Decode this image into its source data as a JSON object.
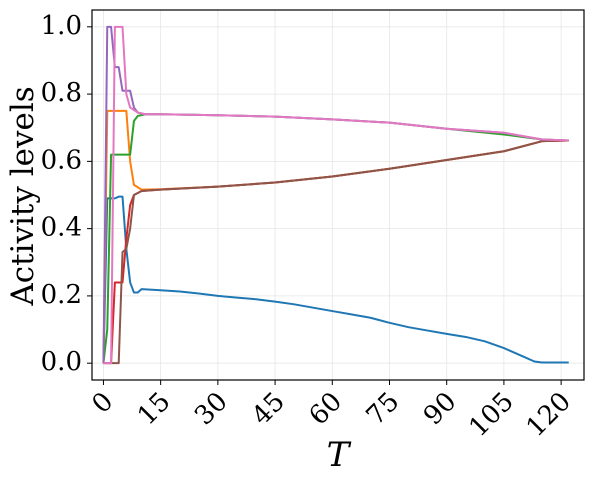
{
  "chart_data": {
    "type": "line",
    "xlabel": "T",
    "ylabel": "Activity levels",
    "xlim": [
      -3,
      126
    ],
    "ylim": [
      -0.05,
      1.05
    ],
    "xticks": [
      0,
      15,
      30,
      45,
      60,
      75,
      90,
      105,
      120
    ],
    "yticks": [
      0.0,
      0.2,
      0.4,
      0.6,
      0.8,
      1.0
    ],
    "xtick_labels": [
      "0",
      "15",
      "30",
      "45",
      "60",
      "75",
      "90",
      "105",
      "120"
    ],
    "ytick_labels": [
      "0.0",
      "0.2",
      "0.4",
      "0.6",
      "0.8",
      "1.0"
    ],
    "xtick_rotation": 45,
    "grid": true,
    "series": [
      {
        "color": "#1f77b4",
        "points": [
          [
            0,
            0
          ],
          [
            1,
            0.49
          ],
          [
            3,
            0.49
          ],
          [
            4,
            0.495
          ],
          [
            5,
            0.495
          ],
          [
            6,
            0.34
          ],
          [
            7,
            0.24
          ],
          [
            8,
            0.21
          ],
          [
            9,
            0.21
          ],
          [
            10,
            0.22
          ],
          [
            15,
            0.217
          ],
          [
            20,
            0.213
          ],
          [
            25,
            0.207
          ],
          [
            30,
            0.2
          ],
          [
            35,
            0.195
          ],
          [
            40,
            0.19
          ],
          [
            45,
            0.183
          ],
          [
            50,
            0.175
          ],
          [
            55,
            0.165
          ],
          [
            60,
            0.155
          ],
          [
            65,
            0.145
          ],
          [
            70,
            0.135
          ],
          [
            75,
            0.12
          ],
          [
            80,
            0.107
          ],
          [
            85,
            0.097
          ],
          [
            90,
            0.087
          ],
          [
            95,
            0.078
          ],
          [
            100,
            0.065
          ],
          [
            105,
            0.045
          ],
          [
            110,
            0.02
          ],
          [
            113,
            0.005
          ],
          [
            115,
            0.002
          ],
          [
            122,
            0.002
          ]
        ]
      },
      {
        "color": "#ff7f0e",
        "points": [
          [
            0,
            0
          ],
          [
            1,
            0.75
          ],
          [
            6,
            0.75
          ],
          [
            7,
            0.6
          ],
          [
            8,
            0.53
          ],
          [
            10,
            0.516
          ],
          [
            15,
            0.517
          ],
          [
            30,
            0.525
          ],
          [
            45,
            0.537
          ],
          [
            60,
            0.555
          ],
          [
            75,
            0.578
          ],
          [
            90,
            0.604
          ],
          [
            105,
            0.63
          ],
          [
            115,
            0.66
          ],
          [
            122,
            0.662
          ]
        ]
      },
      {
        "color": "#2ca02c",
        "points": [
          [
            0,
            0
          ],
          [
            1,
            0.1
          ],
          [
            2,
            0.62
          ],
          [
            7,
            0.62
          ],
          [
            8,
            0.72
          ],
          [
            9,
            0.735
          ],
          [
            11,
            0.74
          ],
          [
            15,
            0.74
          ],
          [
            30,
            0.737
          ],
          [
            45,
            0.733
          ],
          [
            60,
            0.725
          ],
          [
            75,
            0.715
          ],
          [
            90,
            0.697
          ],
          [
            105,
            0.68
          ],
          [
            115,
            0.665
          ],
          [
            122,
            0.662
          ]
        ]
      },
      {
        "color": "#d62728",
        "points": [
          [
            0,
            0
          ],
          [
            2,
            0
          ],
          [
            3,
            0.24
          ],
          [
            5,
            0.24
          ],
          [
            6,
            0.37
          ],
          [
            7,
            0.47
          ],
          [
            8,
            0.5
          ],
          [
            10,
            0.512
          ],
          [
            15,
            0.516
          ],
          [
            30,
            0.525
          ],
          [
            45,
            0.537
          ],
          [
            60,
            0.555
          ],
          [
            75,
            0.578
          ],
          [
            90,
            0.604
          ],
          [
            105,
            0.63
          ],
          [
            115,
            0.66
          ],
          [
            122,
            0.662
          ]
        ]
      },
      {
        "color": "#9467bd",
        "points": [
          [
            0,
            0
          ],
          [
            1,
            1.0
          ],
          [
            2,
            1.0
          ],
          [
            3,
            0.88
          ],
          [
            4,
            0.88
          ],
          [
            5,
            0.81
          ],
          [
            7,
            0.81
          ],
          [
            8,
            0.76
          ],
          [
            9,
            0.745
          ],
          [
            11,
            0.74
          ],
          [
            15,
            0.74
          ],
          [
            30,
            0.737
          ],
          [
            45,
            0.733
          ],
          [
            60,
            0.725
          ],
          [
            75,
            0.715
          ],
          [
            90,
            0.697
          ],
          [
            105,
            0.685
          ],
          [
            115,
            0.665
          ],
          [
            122,
            0.662
          ]
        ]
      },
      {
        "color": "#8c564b",
        "points": [
          [
            0,
            0
          ],
          [
            4,
            0
          ],
          [
            5,
            0.33
          ],
          [
            6,
            0.34
          ],
          [
            7,
            0.4
          ],
          [
            8,
            0.5
          ],
          [
            10,
            0.512
          ],
          [
            15,
            0.516
          ],
          [
            30,
            0.525
          ],
          [
            45,
            0.537
          ],
          [
            60,
            0.555
          ],
          [
            75,
            0.578
          ],
          [
            90,
            0.604
          ],
          [
            105,
            0.63
          ],
          [
            115,
            0.66
          ],
          [
            122,
            0.662
          ]
        ]
      },
      {
        "color": "#e377c2",
        "points": [
          [
            0,
            0
          ],
          [
            1,
            0
          ],
          [
            2,
            0
          ],
          [
            3,
            1.0
          ],
          [
            5,
            1.0
          ],
          [
            6,
            0.8
          ],
          [
            7,
            0.76
          ],
          [
            9,
            0.745
          ],
          [
            11,
            0.74
          ],
          [
            15,
            0.74
          ],
          [
            30,
            0.737
          ],
          [
            45,
            0.733
          ],
          [
            60,
            0.725
          ],
          [
            75,
            0.715
          ],
          [
            90,
            0.697
          ],
          [
            105,
            0.685
          ],
          [
            115,
            0.665
          ],
          [
            122,
            0.662
          ]
        ]
      }
    ]
  }
}
